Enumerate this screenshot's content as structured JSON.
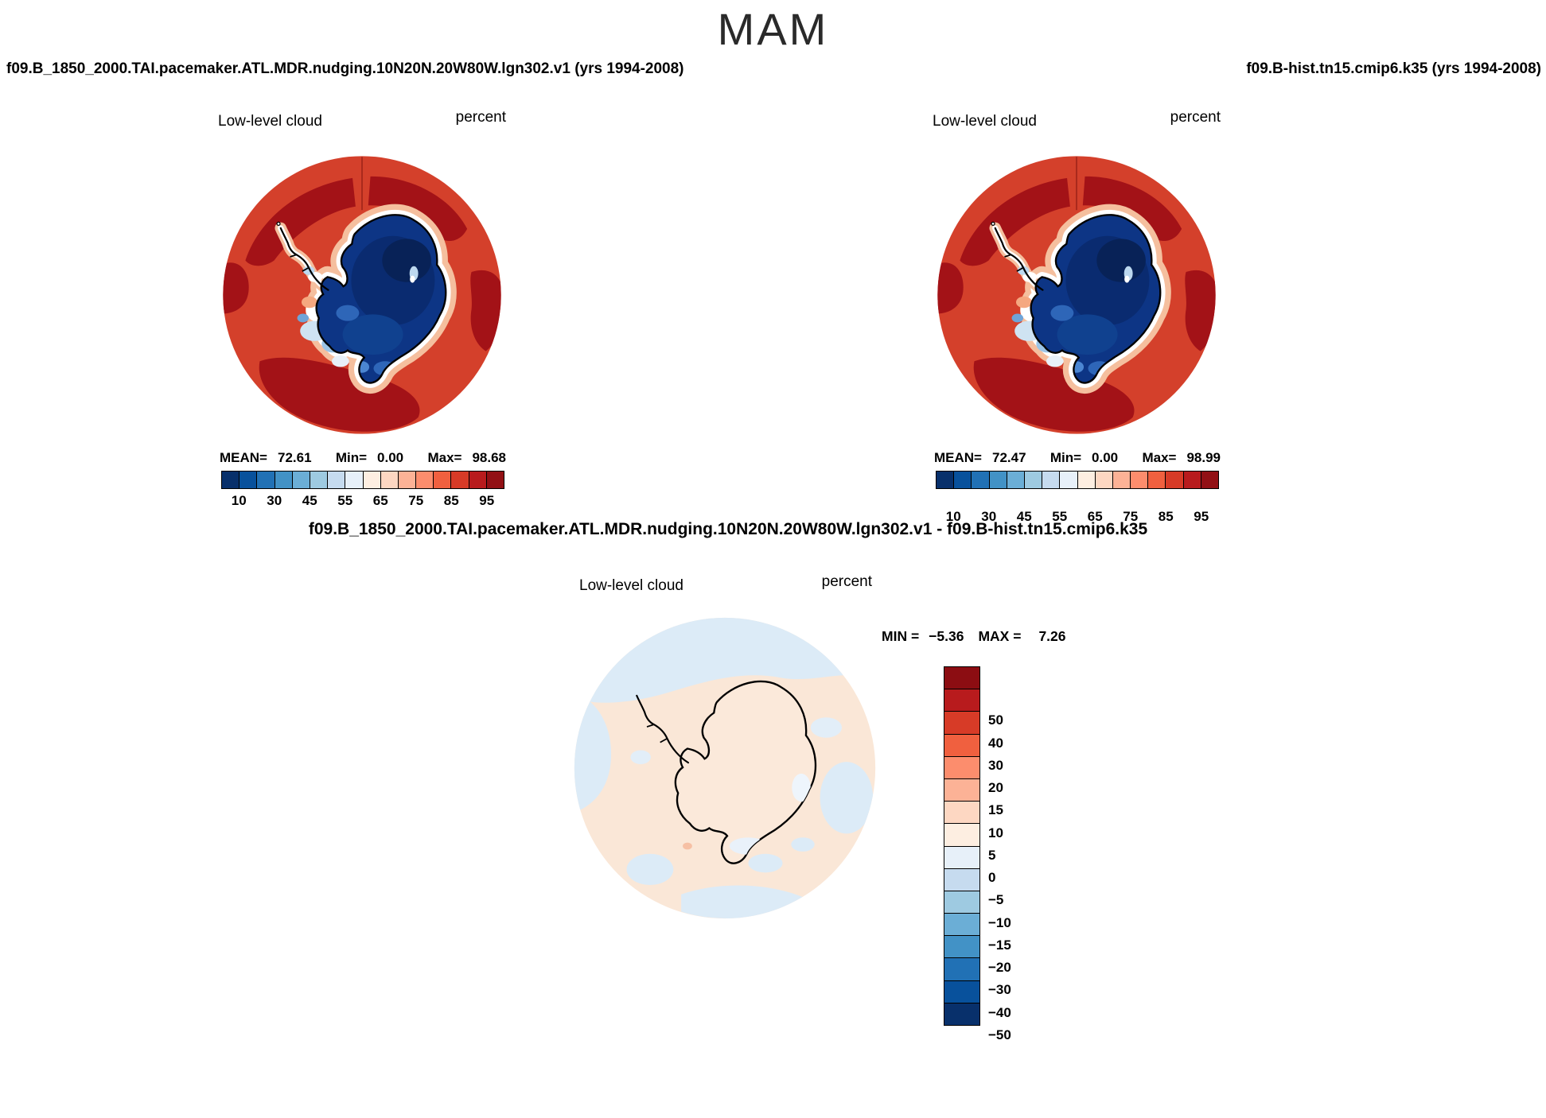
{
  "title": "MAM",
  "panels": {
    "left": {
      "header": "f09.B_1850_2000.TAI.pacemaker.ATL.MDR.nudging.10N20N.20W80W.lgn302.v1 (yrs 1994-2008)",
      "field_label": "Low-level cloud",
      "units_label": "percent",
      "stats": {
        "mean_label": "MEAN=",
        "mean": "72.61",
        "min_label": "Min=",
        "min": "0.00",
        "max_label": "Max=",
        "max": "98.68"
      },
      "colorbar_ticks": [
        "10",
        "30",
        "45",
        "55",
        "65",
        "75",
        "85",
        "95"
      ]
    },
    "right": {
      "header": "f09.B-hist.tn15.cmip6.k35 (yrs 1994-2008)",
      "field_label": "Low-level cloud",
      "units_label": "percent",
      "stats": {
        "mean_label": "MEAN=",
        "mean": "72.47",
        "min_label": "Min=",
        "min": "0.00",
        "max_label": "Max=",
        "max": "98.99"
      },
      "colorbar_ticks": [
        "10",
        "30",
        "45",
        "55",
        "65",
        "75",
        "85",
        "95"
      ]
    },
    "diff": {
      "header": "f09.B_1850_2000.TAI.pacemaker.ATL.MDR.nudging.10N20N.20W80W.lgn302.v1 - f09.B-hist.tn15.cmip6.k35",
      "field_label": "Low-level cloud",
      "units_label": "percent",
      "stats": {
        "min_label": "MIN =",
        "min": "−5.36",
        "max_label": "MAX =",
        "max": "7.26"
      },
      "colorbar_ticks": [
        "50",
        "40",
        "30",
        "20",
        "15",
        "10",
        "5",
        "0",
        "−5",
        "−10",
        "−15",
        "−20",
        "−30",
        "−40",
        "−50"
      ]
    }
  },
  "colors": {
    "cloud_palette": [
      "#08306b",
      "#08519c",
      "#2171b5",
      "#4292c6",
      "#6baed6",
      "#9ecae1",
      "#c6dbef",
      "#e7f0f9",
      "#fdeee1",
      "#fdd7c2",
      "#fcb296",
      "#fc8d6d",
      "#f0603f",
      "#d73b27",
      "#b81b1d",
      "#921015"
    ],
    "diff_palette": [
      "#8c0d12",
      "#b81b1d",
      "#d73b27",
      "#f0603f",
      "#fc8d6d",
      "#fcb296",
      "#fdd7c2",
      "#fdeee1",
      "#e7f0f9",
      "#c6dbef",
      "#9ecae1",
      "#6baed6",
      "#4292c6",
      "#2171b5",
      "#08519c",
      "#08306b"
    ],
    "ocean_high_cloud": "#d4402b",
    "ocean_very_high_cloud": "#a31217",
    "continent_low_cloud": "#0d3585",
    "diff_near_zero_positive": "#fae7d7",
    "diff_near_zero_negative": "#dcebf7"
  },
  "chart_data": {
    "type": "heatmap",
    "title": "MAM",
    "variable": "Low-level cloud",
    "units": "percent",
    "projection": "south polar stereographic (Antarctica)",
    "panels": [
      {
        "id": "case",
        "header": "f09.B_1850_2000.TAI.pacemaker.ATL.MDR.nudging.10N20N.20W80W.lgn302.v1 (yrs 1994-2008)",
        "mean": 72.61,
        "min": 0.0,
        "max": 98.68,
        "colorbar_ticks": [
          10,
          30,
          45,
          55,
          65,
          75,
          85,
          95
        ],
        "legend_position": "below"
      },
      {
        "id": "reference",
        "header": "f09.B-hist.tn15.cmip6.k35 (yrs 1994-2008)",
        "mean": 72.47,
        "min": 0.0,
        "max": 98.99,
        "colorbar_ticks": [
          10,
          30,
          45,
          55,
          65,
          75,
          85,
          95
        ],
        "legend_position": "below"
      },
      {
        "id": "difference",
        "header": "f09.B_1850_2000.TAI.pacemaker.ATL.MDR.nudging.10N20N.20W80W.lgn302.v1 - f09.B-hist.tn15.cmip6.k35",
        "min": -5.36,
        "max": 7.26,
        "colorbar_ticks": [
          50,
          40,
          30,
          20,
          15,
          10,
          5,
          0,
          -5,
          -10,
          -15,
          -20,
          -30,
          -40,
          -50
        ],
        "legend_position": "right"
      }
    ]
  }
}
